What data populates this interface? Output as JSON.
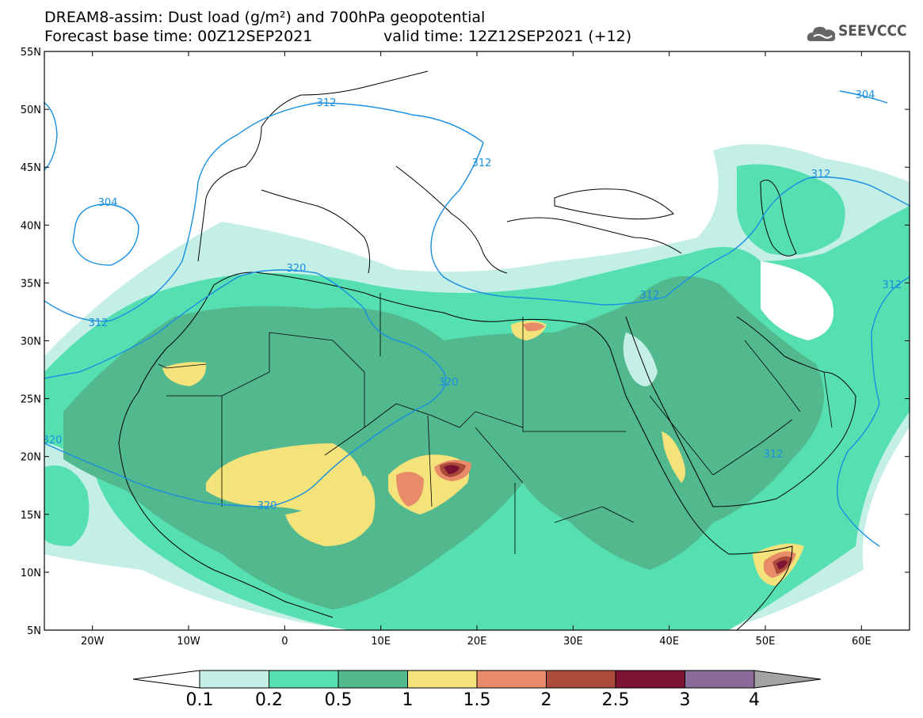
{
  "header": {
    "title_line1": "DREAM8-assim: Dust load (g/m²) and 700hPa geopotential",
    "base_time": "Forecast base time: 00Z12SEP2021",
    "valid_time": "valid time: 12Z12SEP2021 (+12)",
    "logo_text": "SEEVCCC",
    "logo_icon": "cloud-logo-icon"
  },
  "axes": {
    "lat_labels": [
      "55N",
      "50N",
      "45N",
      "40N",
      "35N",
      "30N",
      "25N",
      "20N",
      "15N",
      "10N",
      "5N"
    ],
    "lon_labels": [
      "20W",
      "10W",
      "0",
      "10E",
      "20E",
      "30E",
      "40E",
      "50E",
      "60E"
    ]
  },
  "contour_labels": [
    "312",
    "312",
    "304",
    "312",
    "304",
    "320",
    "320",
    "320",
    "320",
    "312",
    "312",
    "312",
    "312"
  ],
  "colorbar": {
    "labels": [
      "0.1",
      "0.2",
      "0.5",
      "1",
      "1.5",
      "2",
      "2.5",
      "3",
      "4"
    ],
    "colors": [
      "#c4efe6",
      "#56e0b1",
      "#52b88e",
      "#f4e27a",
      "#e88b68",
      "#ab4a3a",
      "#7e1232",
      "#8a6a98"
    ],
    "under_color": "#ffffff",
    "over_color": "#a3a3a3"
  },
  "map_colors": {
    "dust_0_1": "#c4efe6",
    "dust_0_2": "#56e0b1",
    "dust_0_5": "#52b88e",
    "dust_1": "#f4e27a",
    "dust_1_5": "#e88b68",
    "dust_2": "#ab4a3a",
    "dust_2_5": "#7e1232",
    "contour": "#1a8fe0",
    "border": "#000000"
  }
}
